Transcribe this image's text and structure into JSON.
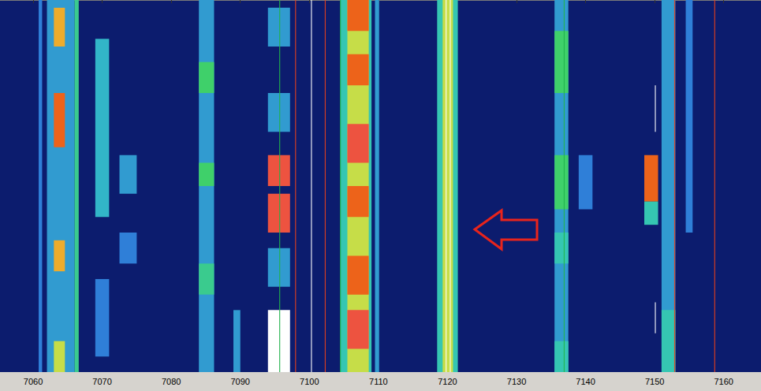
{
  "chart_data": {
    "type": "heatmap",
    "xlim": [
      7055.2,
      7165.4
    ],
    "xticks": [
      7060,
      7070,
      7080,
      7090,
      7100,
      7110,
      7120,
      7130,
      7140,
      7150,
      7160
    ],
    "ylim": [
      0,
      48
    ],
    "tick_labels": "x",
    "grid": false,
    "zlim": [
      0,
      10
    ],
    "cells": [
      {
        "f": [
          7060.8,
          7061.3
        ],
        "t": [
          0,
          48
        ],
        "v": 2.5
      },
      {
        "f": [
          7062,
          7066
        ],
        "t": [
          0,
          48
        ],
        "v": 3
      },
      {
        "f": [
          7063,
          7064.6
        ],
        "t": [
          1,
          6
        ],
        "v": 7
      },
      {
        "f": [
          7063,
          7064.6
        ],
        "t": [
          12,
          19
        ],
        "v": 8
      },
      {
        "f": [
          7063,
          7064.6
        ],
        "t": [
          31,
          35
        ],
        "v": 7
      },
      {
        "f": [
          7063,
          7064.6
        ],
        "t": [
          44,
          48
        ],
        "v": 6
      },
      {
        "f": [
          7066,
          7066.6
        ],
        "t": [
          0,
          48
        ],
        "v": 4.5
      },
      {
        "f": [
          7069,
          7071
        ],
        "t": [
          5,
          28
        ],
        "v": 3.5
      },
      {
        "f": [
          7069,
          7071
        ],
        "t": [
          36,
          46
        ],
        "v": 2.5
      },
      {
        "f": [
          7072.5,
          7075
        ],
        "t": [
          20,
          25
        ],
        "v": 3
      },
      {
        "f": [
          7072.5,
          7075
        ],
        "t": [
          30,
          34
        ],
        "v": 2.5
      },
      {
        "f": [
          7084,
          7086.2
        ],
        "t": [
          0,
          48
        ],
        "v": 3
      },
      {
        "f": [
          7084,
          7086.2
        ],
        "t": [
          8,
          12
        ],
        "v": 5
      },
      {
        "f": [
          7084,
          7086.2
        ],
        "t": [
          21,
          24
        ],
        "v": 5
      },
      {
        "f": [
          7084,
          7086.2
        ],
        "t": [
          34,
          38
        ],
        "v": 4.5
      },
      {
        "f": [
          7089,
          7090
        ],
        "t": [
          40,
          48
        ],
        "v": 3
      },
      {
        "f": [
          7094,
          7097.2
        ],
        "t": [
          1,
          6
        ],
        "v": 3
      },
      {
        "f": [
          7094,
          7097.2
        ],
        "t": [
          12,
          17
        ],
        "v": 3
      },
      {
        "f": [
          7094,
          7097.2
        ],
        "t": [
          20,
          24
        ],
        "v": 9
      },
      {
        "f": [
          7094,
          7097.2
        ],
        "t": [
          25,
          30
        ],
        "v": 9
      },
      {
        "f": [
          7094,
          7097.2
        ],
        "t": [
          32,
          37
        ],
        "v": 3
      },
      {
        "f": [
          7094,
          7097.2
        ],
        "t": [
          40,
          48
        ],
        "v": 10
      },
      {
        "f": [
          7104.5,
          7109
        ],
        "t": [
          0,
          48
        ],
        "v": 4
      },
      {
        "f": [
          7105.5,
          7108.6
        ],
        "t": [
          0,
          48
        ],
        "v": 6
      },
      {
        "f": [
          7105.5,
          7108.6
        ],
        "t": [
          0,
          4
        ],
        "v": 8
      },
      {
        "f": [
          7105.5,
          7108.6
        ],
        "t": [
          7,
          11
        ],
        "v": 8
      },
      {
        "f": [
          7105.5,
          7108.6
        ],
        "t": [
          16,
          21
        ],
        "v": 9
      },
      {
        "f": [
          7105.5,
          7108.6
        ],
        "t": [
          24,
          28
        ],
        "v": 8
      },
      {
        "f": [
          7105.5,
          7108.6
        ],
        "t": [
          33,
          38
        ],
        "v": 8
      },
      {
        "f": [
          7105.5,
          7108.6
        ],
        "t": [
          40,
          45
        ],
        "v": 9
      },
      {
        "f": [
          7109.5,
          7110.1
        ],
        "t": [
          0,
          48
        ],
        "v": 3
      },
      {
        "f": [
          7118.5,
          7121.5
        ],
        "t": [
          0,
          48
        ],
        "v": 4
      },
      {
        "f": [
          7119.3,
          7120.8
        ],
        "t": [
          0,
          48
        ],
        "v": 6
      },
      {
        "f": [
          7135.5,
          7137.5
        ],
        "t": [
          0,
          48
        ],
        "v": 3
      },
      {
        "f": [
          7135.5,
          7137.5
        ],
        "t": [
          4,
          12
        ],
        "v": 5
      },
      {
        "f": [
          7135.5,
          7137.5
        ],
        "t": [
          20,
          27
        ],
        "v": 5
      },
      {
        "f": [
          7135.5,
          7137.5
        ],
        "t": [
          30,
          34
        ],
        "v": 4
      },
      {
        "f": [
          7135.5,
          7137.5
        ],
        "t": [
          44,
          48
        ],
        "v": 4
      },
      {
        "f": [
          7139,
          7141
        ],
        "t": [
          20,
          27
        ],
        "v": 2.5
      },
      {
        "f": [
          7148.5,
          7150.5
        ],
        "t": [
          20,
          26
        ],
        "v": 8
      },
      {
        "f": [
          7148.5,
          7150.5
        ],
        "t": [
          26,
          29
        ],
        "v": 4
      },
      {
        "f": [
          7151,
          7153
        ],
        "t": [
          0,
          48
        ],
        "v": 3
      },
      {
        "f": [
          7151,
          7153
        ],
        "t": [
          40,
          48
        ],
        "v": 4
      },
      {
        "f": [
          7154.5,
          7155.5
        ],
        "t": [
          0,
          30
        ],
        "v": 2.5
      }
    ],
    "markers": [
      {
        "x": 7095.7,
        "t": [
          0,
          48
        ],
        "color": "#22b14c"
      },
      {
        "x": 7098.0,
        "t": [
          0,
          48
        ],
        "color": "#e8401c"
      },
      {
        "x": 7100.3,
        "t": [
          0,
          48
        ],
        "color": "#ffffff"
      },
      {
        "x": 7102.3,
        "t": [
          0,
          48
        ],
        "color": "#e8401c"
      },
      {
        "x": 7104.5,
        "t": [
          0,
          48
        ],
        "color": "#22b14c"
      },
      {
        "x": 7119.8,
        "t": [
          0,
          48
        ],
        "color": "#ffffff"
      },
      {
        "x": 7120.4,
        "t": [
          0,
          48
        ],
        "color": "#ffffff"
      },
      {
        "x": 7136.9,
        "t": [
          0,
          48
        ],
        "color": "#22b14c"
      },
      {
        "x": 7152.9,
        "t": [
          0,
          48
        ],
        "color": "#e8401c"
      },
      {
        "x": 7158.7,
        "t": [
          0,
          48
        ],
        "color": "#e8401c"
      },
      {
        "x": 7150.1,
        "t": [
          11,
          17
        ],
        "color": "#ffffff"
      },
      {
        "x": 7150.1,
        "t": [
          39,
          43
        ],
        "color": "#ffffff"
      }
    ]
  }
}
